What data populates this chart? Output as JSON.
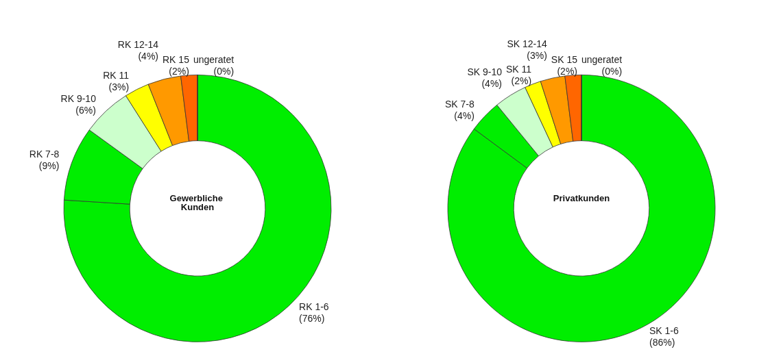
{
  "chart_data": [
    {
      "type": "donut",
      "title": "Gewerbliche Kunden",
      "categories": [
        "RK 1-6",
        "RK 7-8",
        "RK 9-10",
        "RK 11",
        "RK 12-14",
        "RK 15",
        "ungeratet"
      ],
      "values": [
        76,
        9,
        6,
        3,
        4,
        2,
        0
      ],
      "value_labels": [
        "(76%)",
        "(9%)",
        "(6%)",
        "(3%)",
        "(4%)",
        "(2%)",
        "(0%)"
      ],
      "colors": [
        "#00ee00",
        "#00ee00",
        "#ccffcc",
        "#ffff00",
        "#ff9900",
        "#ff6600",
        "#ff0000"
      ],
      "legend": false
    },
    {
      "type": "donut",
      "title": "Privatkunden",
      "categories": [
        "SK 1-6",
        "SK 7-8",
        "SK 9-10",
        "SK 11",
        "SK 12-14",
        "SK 15",
        "ungeratet"
      ],
      "values": [
        86,
        4,
        4,
        2,
        3,
        2,
        0
      ],
      "value_labels": [
        "(86%)",
        "(4%)",
        "(4%)",
        "(2%)",
        "(3%)",
        "(2%)",
        "(0%)"
      ],
      "colors": [
        "#00ee00",
        "#00ee00",
        "#ccffcc",
        "#ffff00",
        "#ff9900",
        "#ff6600",
        "#ff0000"
      ],
      "legend": false
    }
  ]
}
